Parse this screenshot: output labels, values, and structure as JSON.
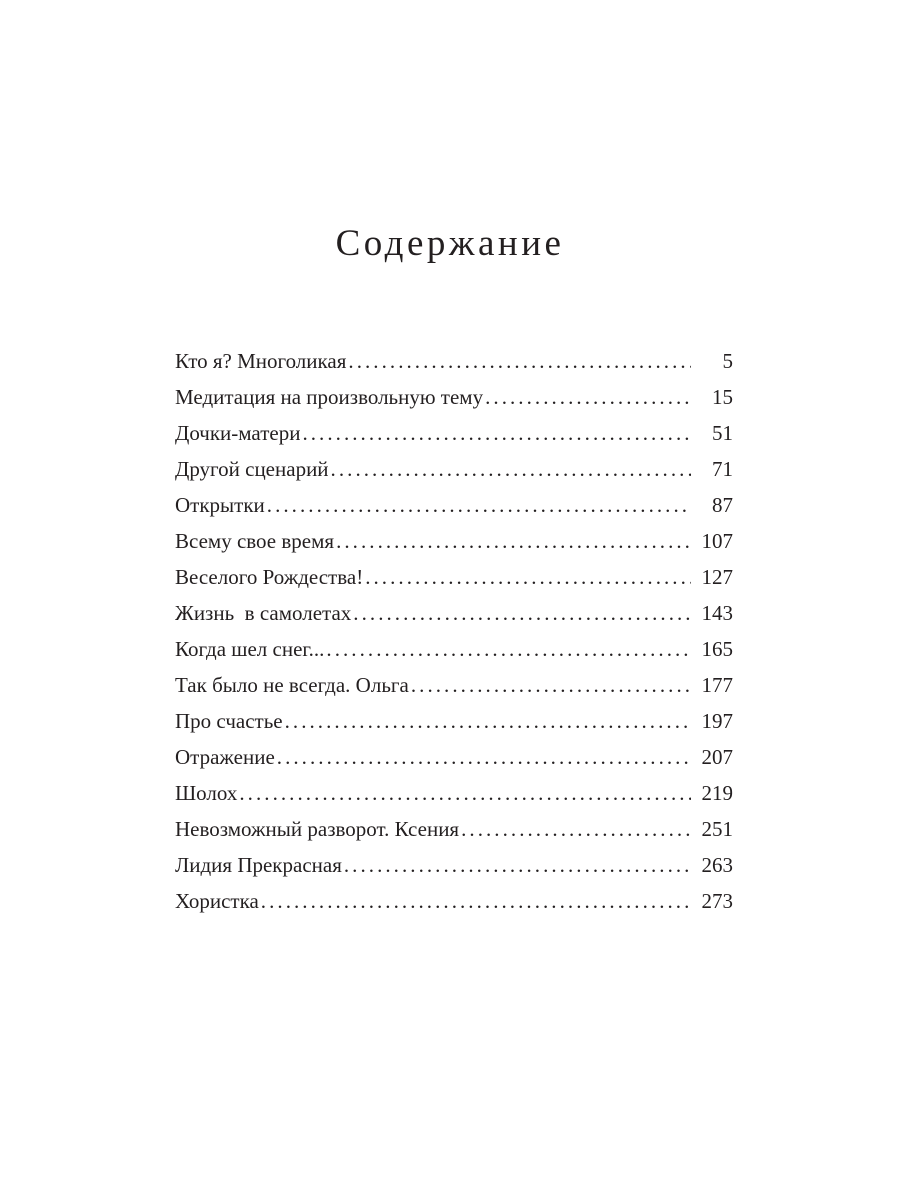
{
  "title": "Содержание",
  "entries": [
    {
      "label": "Кто я? Многоликая",
      "page": "5"
    },
    {
      "label": "Медитация на произвольную тему",
      "page": "15"
    },
    {
      "label": "Дочки-матери",
      "page": "51"
    },
    {
      "label": "Другой сценарий",
      "page": "71"
    },
    {
      "label": "Открытки",
      "page": "87"
    },
    {
      "label": "Всему свое время",
      "page": "107"
    },
    {
      "label": "Веселого Рождества!",
      "page": "127"
    },
    {
      "label": "Жизнь  в самолетах",
      "page": "143"
    },
    {
      "label": "Когда шел снег...",
      "page": "165"
    },
    {
      "label": "Так было не всегда. Ольга",
      "page": "177"
    },
    {
      "label": "Про счастье",
      "page": "197"
    },
    {
      "label": "Отражение",
      "page": "207"
    },
    {
      "label": "Шолох",
      "page": "219"
    },
    {
      "label": "Невозможный разворот. Ксения",
      "page": "251"
    },
    {
      "label": "Лидия Прекрасная",
      "page": "263"
    },
    {
      "label": "Хористка",
      "page": "273"
    }
  ]
}
